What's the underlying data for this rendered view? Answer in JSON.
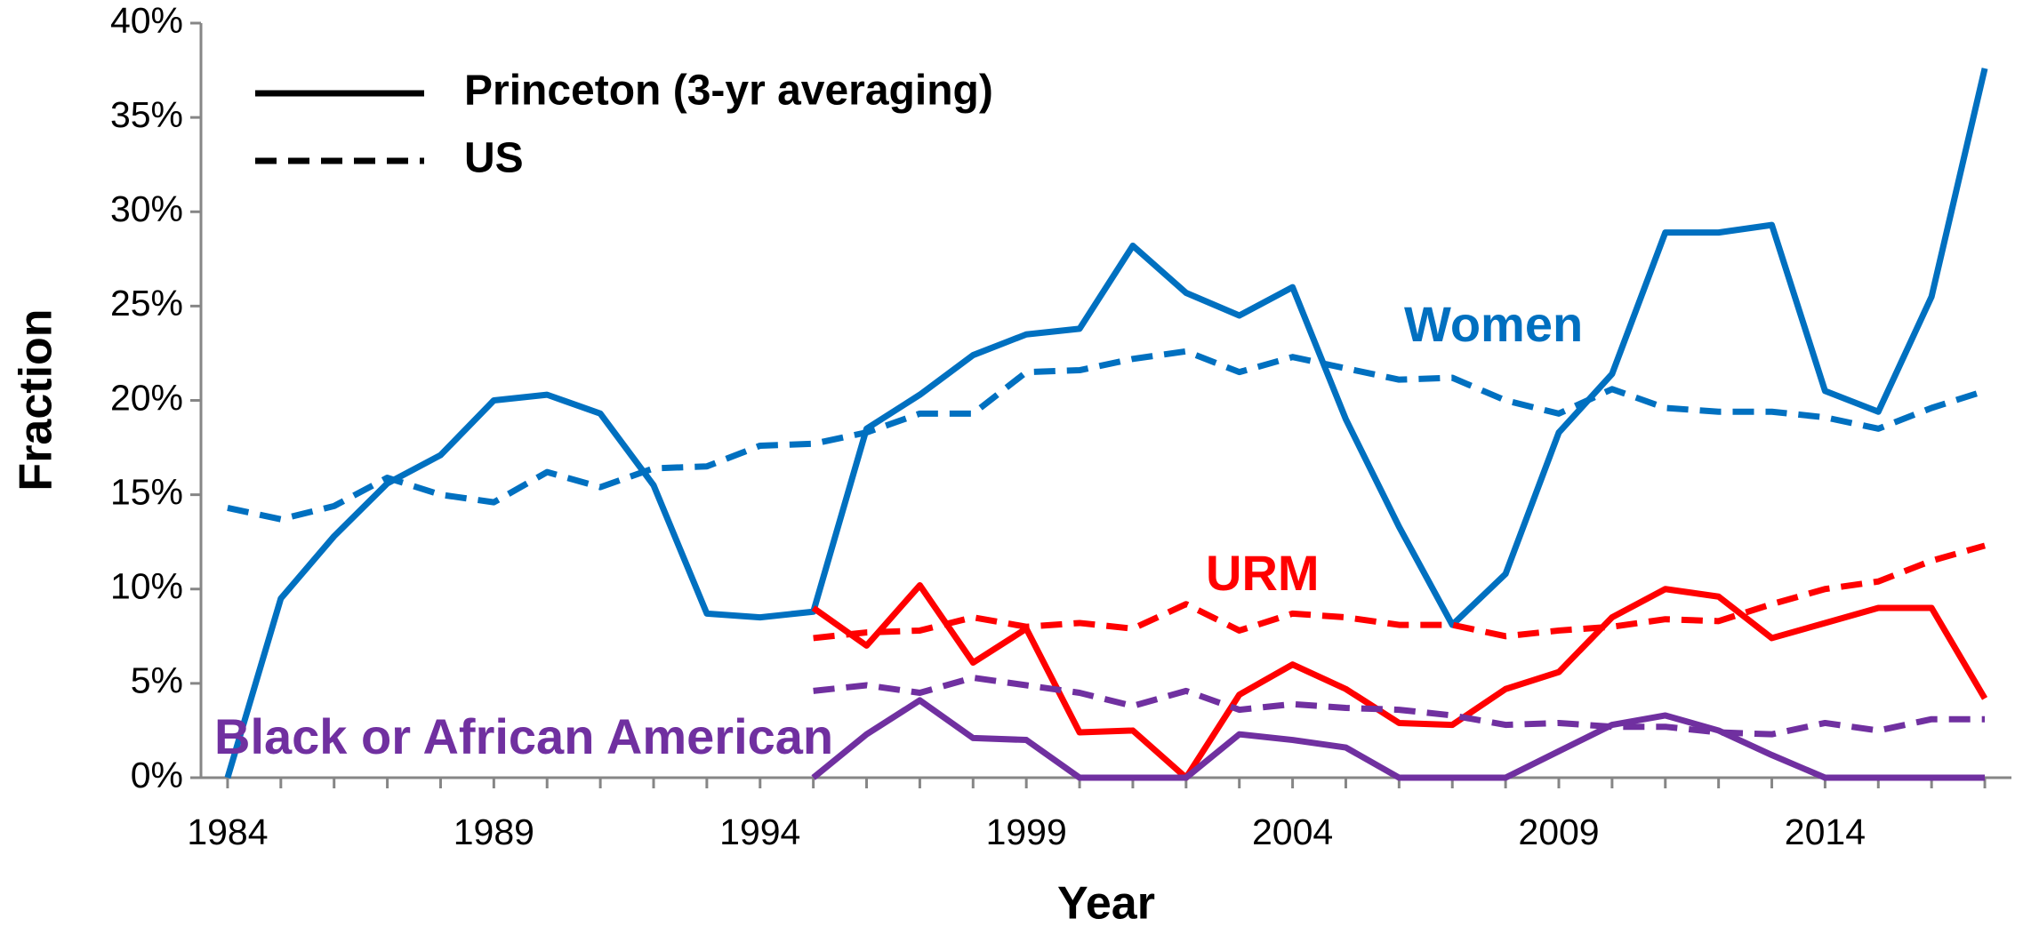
{
  "chart_data": {
    "type": "line",
    "xlabel": "Year",
    "ylabel": "Fraction",
    "x": [
      1984,
      1985,
      1986,
      1987,
      1988,
      1989,
      1990,
      1991,
      1992,
      1993,
      1994,
      1995,
      1996,
      1997,
      1998,
      1999,
      2000,
      2001,
      2002,
      2003,
      2004,
      2005,
      2006,
      2007,
      2008,
      2009,
      2010,
      2011,
      2012,
      2013,
      2014,
      2015,
      2016,
      2017
    ],
    "xlim": [
      1983.5,
      2017.5
    ],
    "xticks": [
      1984,
      1989,
      1994,
      1999,
      2004,
      2009,
      2014
    ],
    "ylim": [
      0,
      40
    ],
    "yticks": [
      {
        "value": 0,
        "label": "0%"
      },
      {
        "value": 5,
        "label": "5%"
      },
      {
        "value": 10,
        "label": "10%"
      },
      {
        "value": 15,
        "label": "15%"
      },
      {
        "value": 20,
        "label": "20%"
      },
      {
        "value": 25,
        "label": "25%"
      },
      {
        "value": 30,
        "label": "30%"
      },
      {
        "value": 35,
        "label": "35%"
      },
      {
        "value": 40,
        "label": "40%"
      }
    ],
    "legend": [
      {
        "label": "Princeton (3-yr averaging)",
        "style": "solid"
      },
      {
        "label": "US",
        "style": "dashed"
      }
    ],
    "groups": [
      {
        "name": "Women",
        "color": "#0070c0",
        "princeton": [
          0,
          9.5,
          12.8,
          15.6,
          17.1,
          20.0,
          20.3,
          19.3,
          15.5,
          8.7,
          8.5,
          8.8,
          18.5,
          20.3,
          22.4,
          23.5,
          23.8,
          28.2,
          25.7,
          24.5,
          26.0,
          19.0,
          13.3,
          8.1,
          10.8,
          18.3,
          21.4,
          28.9,
          28.9,
          29.3,
          20.5,
          19.4,
          25.5,
          37.6
        ],
        "us": [
          14.3,
          13.7,
          14.4,
          15.9,
          15.0,
          14.6,
          16.2,
          15.4,
          16.4,
          16.5,
          17.6,
          17.7,
          18.3,
          19.3,
          19.3,
          21.5,
          21.6,
          22.2,
          22.6,
          21.5,
          22.3,
          21.7,
          21.1,
          21.2,
          20.0,
          19.3,
          20.6,
          19.6,
          19.4,
          19.4,
          19.1,
          18.5,
          19.6,
          20.5
        ]
      },
      {
        "name": "URM",
        "color": "#ff0000",
        "princeton": [
          null,
          null,
          null,
          null,
          null,
          null,
          null,
          null,
          null,
          null,
          null,
          9.0,
          7.0,
          10.2,
          6.1,
          7.9,
          2.4,
          2.5,
          0,
          4.4,
          6.0,
          4.7,
          2.9,
          2.8,
          4.7,
          5.6,
          8.5,
          10.0,
          9.6,
          7.4,
          8.2,
          9.0,
          9.0,
          4.2
        ],
        "us": [
          null,
          null,
          null,
          null,
          null,
          null,
          null,
          null,
          null,
          null,
          null,
          7.4,
          7.7,
          7.8,
          8.5,
          8.0,
          8.2,
          7.9,
          9.2,
          7.8,
          8.7,
          8.5,
          8.1,
          8.1,
          7.5,
          7.8,
          8.0,
          8.4,
          8.3,
          9.2,
          10.0,
          10.4,
          11.5,
          12.3
        ]
      },
      {
        "name": "Black or African American",
        "color": "#7030a0",
        "princeton": [
          null,
          null,
          null,
          null,
          null,
          null,
          null,
          null,
          null,
          null,
          null,
          0,
          2.3,
          4.1,
          2.1,
          2.0,
          0,
          0,
          0,
          2.3,
          2.0,
          1.6,
          0,
          0,
          0,
          1.4,
          2.8,
          3.3,
          2.5,
          1.2,
          0,
          0,
          0,
          0
        ],
        "us": [
          null,
          null,
          null,
          null,
          null,
          null,
          null,
          null,
          null,
          null,
          null,
          4.6,
          4.9,
          4.5,
          5.3,
          4.9,
          4.5,
          3.8,
          4.6,
          3.6,
          3.9,
          3.7,
          3.6,
          3.3,
          2.8,
          2.9,
          2.7,
          2.7,
          2.4,
          2.3,
          2.9,
          2.5,
          3.1,
          3.1
        ]
      }
    ]
  }
}
